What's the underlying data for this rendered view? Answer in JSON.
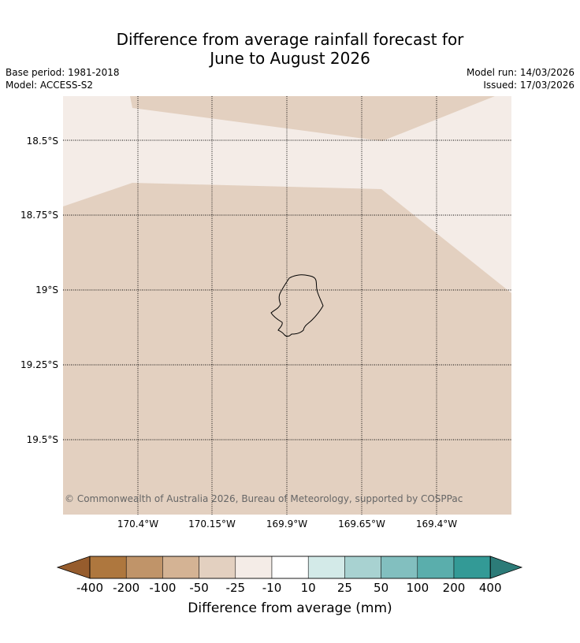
{
  "title": {
    "line1": "Difference from average rainfall forecast for",
    "line2": "June to August 2026"
  },
  "meta": {
    "base_period": "Base period: 1981-2018",
    "model": "Model: ACCESS-S2",
    "model_run": "Model run: 14/03/2026",
    "issued": "Issued: 17/03/2026"
  },
  "map": {
    "latitude_labels": [
      "18.5°S",
      "18.75°S",
      "19°S",
      "19.25°S",
      "19.5°S"
    ],
    "longitude_labels": [
      "170.4°W",
      "170.15°W",
      "169.9°W",
      "169.65°W",
      "169.4°W"
    ],
    "copyright": "© Commonwealth of Australia 2026, Bureau of Meteorology, supported by COSPPac",
    "colors": {
      "category_minus_25_to_minus_10": "#f4ece7",
      "category_minus_50_to_minus_25": "#e3d0c0",
      "coastline": "#000000"
    }
  },
  "legend": {
    "ticks": [
      "-400",
      "-200",
      "-100",
      "-50",
      "-25",
      "-10",
      "10",
      "25",
      "50",
      "100",
      "200",
      "400"
    ],
    "colors": [
      "#965c2d",
      "#ae773e",
      "#c09469",
      "#d4b394",
      "#e3d0c0",
      "#f4ece7",
      "#ffffff",
      "#d3eae8",
      "#a8d2d1",
      "#82bfbf",
      "#5aaeac",
      "#339a96",
      "#2c7b78"
    ],
    "label": "Difference from average (mm)"
  }
}
